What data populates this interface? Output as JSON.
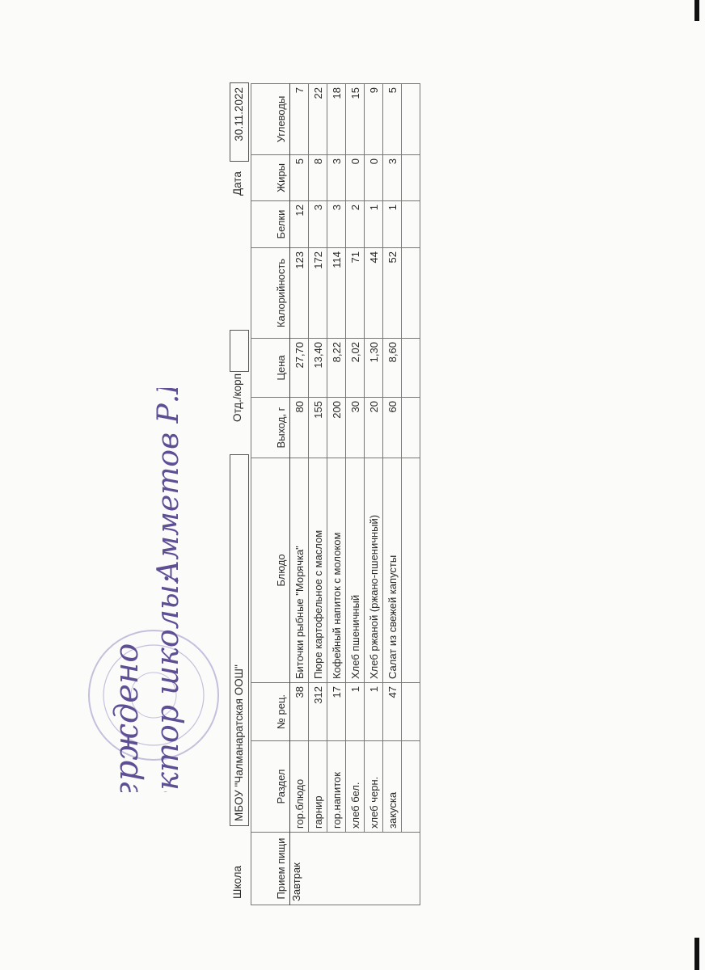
{
  "header": {
    "school_label": "Школа",
    "school_value": "МБОУ \"Чалманаратская ООШ\"",
    "dept_label": "Отд./корп",
    "dept_value": "",
    "date_label": "Дата",
    "date_value": "30.11.2022"
  },
  "table": {
    "columns": [
      "Прием пищи",
      "Раздел",
      "№ рец.",
      "Блюдо",
      "Выход, г",
      "Цена",
      "Калорийность",
      "Белки",
      "Жиры",
      "Углеводы"
    ],
    "meal": "Завтрак",
    "rows": [
      {
        "section": "гор.блюдо",
        "recipe": "38",
        "dish": "Биточки рыбные \"Морячка\"",
        "yield": "80",
        "price": "27,70",
        "kcal": "123",
        "protein": "12",
        "fat": "5",
        "carbs": "7"
      },
      {
        "section": "гарнир",
        "recipe": "312",
        "dish": "Пюре картофельное с маслом",
        "yield": "155",
        "price": "13,40",
        "kcal": "172",
        "protein": "3",
        "fat": "8",
        "carbs": "22"
      },
      {
        "section": "гор.напиток",
        "recipe": "17",
        "dish": "Кофейный напиток с молоком",
        "yield": "200",
        "price": "8,22",
        "kcal": "114",
        "protein": "3",
        "fat": "3",
        "carbs": "18"
      },
      {
        "section": "хлеб бел.",
        "recipe": "1",
        "dish": "Хлеб пшеничный",
        "yield": "30",
        "price": "2,02",
        "kcal": "71",
        "protein": "2",
        "fat": "0",
        "carbs": "15"
      },
      {
        "section": "хлеб черн.",
        "recipe": "1",
        "dish": "Хлеб ржаной (ржано-пшеничный)",
        "yield": "20",
        "price": "1,30",
        "kcal": "44",
        "protein": "1",
        "fat": "0",
        "carbs": "9"
      },
      {
        "section": "закуска",
        "recipe": "47",
        "dish": "Салат из свежей капусты",
        "yield": "60",
        "price": "8,60",
        "kcal": "52",
        "protein": "1",
        "fat": "3",
        "carbs": "5"
      }
    ]
  },
  "approval": {
    "line1": "Утверждено",
    "line2": "Директор школы:",
    "signature": "Амметов Р.Р.",
    "ink_color": "#6a5a9a"
  }
}
